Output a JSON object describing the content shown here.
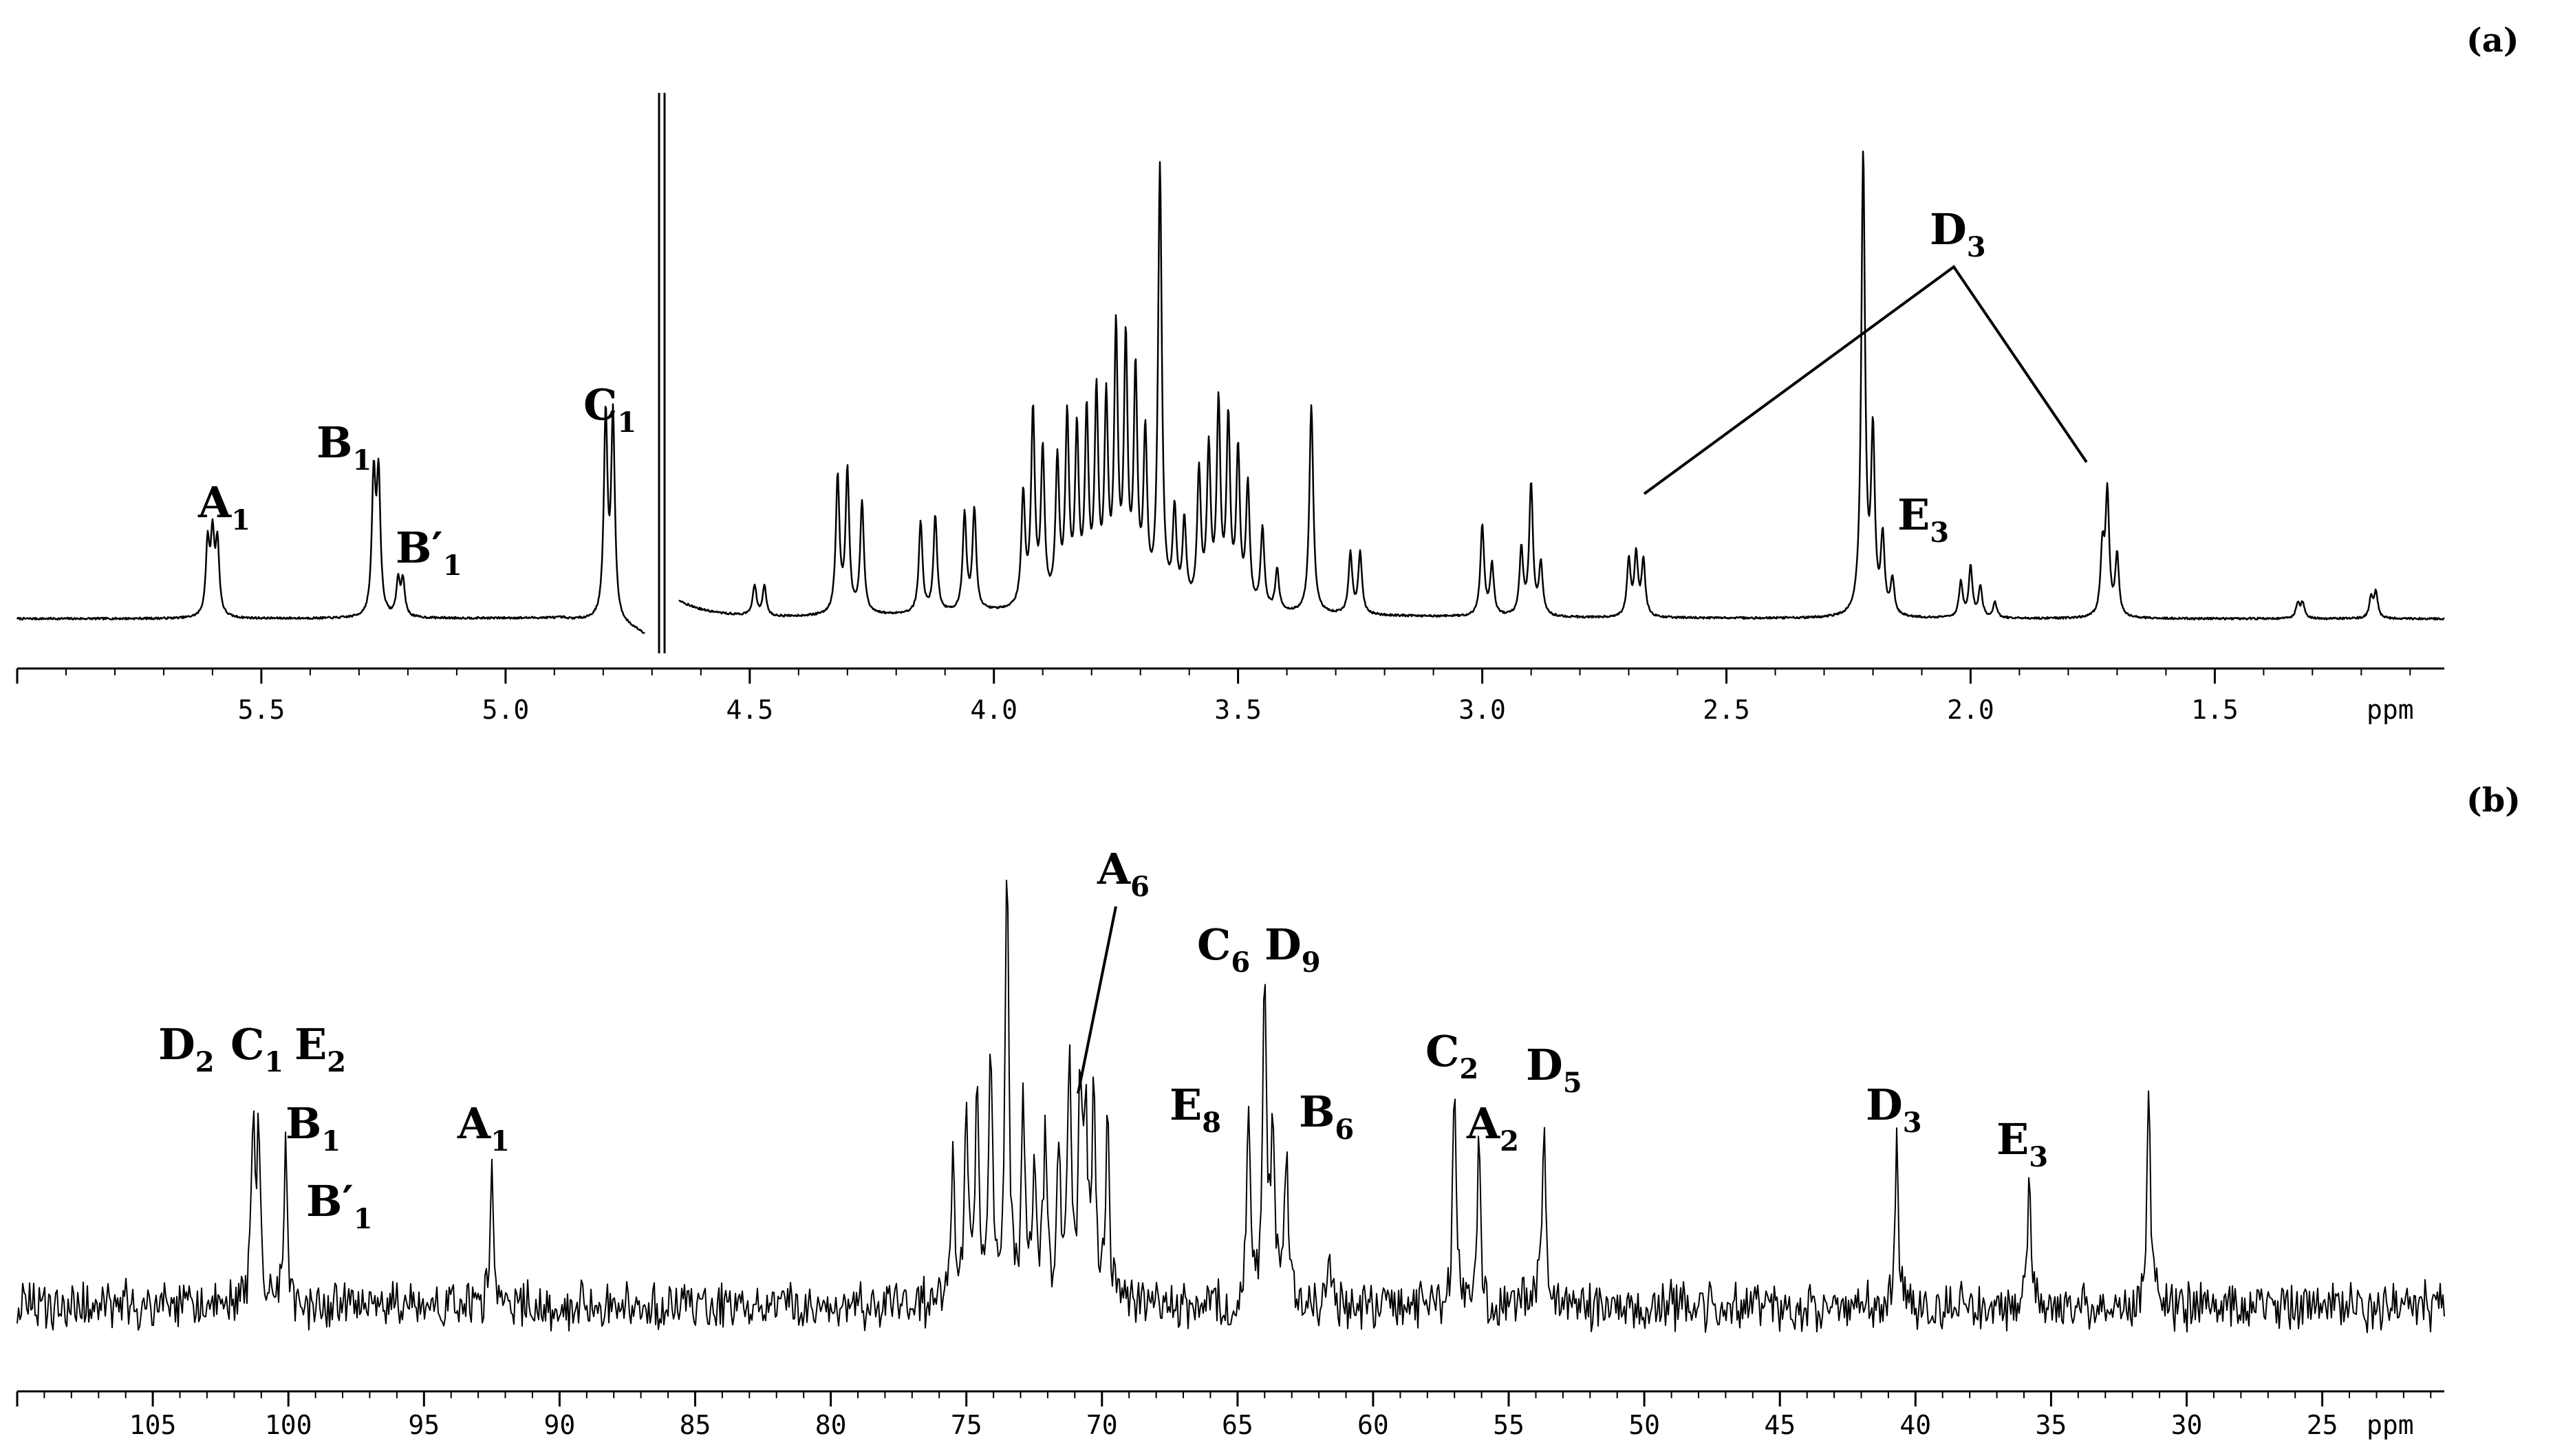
{
  "chart_data": [
    {
      "type": "line",
      "panel_label": "(a)",
      "unit_label": "ppm",
      "xlim": [
        6.0,
        1.03
      ],
      "x_reversed": true,
      "ticks": [
        5.5,
        5.0,
        4.5,
        4.0,
        3.5,
        3.0,
        2.5,
        2.0,
        1.5
      ],
      "tick_labels": [
        "5.5",
        "5.0",
        "4.5",
        "4.0",
        "3.5",
        "3.0",
        "2.5",
        "2.0",
        "1.5"
      ],
      "peaks": [
        {
          "ppm": 5.61,
          "h": 0.14
        },
        {
          "ppm": 5.6,
          "h": 0.15
        },
        {
          "ppm": 5.59,
          "h": 0.14
        },
        {
          "ppm": 5.27,
          "h": 0.27
        },
        {
          "ppm": 5.26,
          "h": 0.27
        },
        {
          "ppm": 5.22,
          "h": 0.07
        },
        {
          "ppm": 5.21,
          "h": 0.07
        },
        {
          "ppm": 4.795,
          "h": 0.4
        },
        {
          "ppm": 4.78,
          "h": 0.4
        },
        {
          "ppm": 4.49,
          "h": 0.06
        },
        {
          "ppm": 4.47,
          "h": 0.06
        },
        {
          "ppm": 4.32,
          "h": 0.27
        },
        {
          "ppm": 4.3,
          "h": 0.28
        },
        {
          "ppm": 4.27,
          "h": 0.22
        },
        {
          "ppm": 4.15,
          "h": 0.18
        },
        {
          "ppm": 4.12,
          "h": 0.19
        },
        {
          "ppm": 4.06,
          "h": 0.19
        },
        {
          "ppm": 4.04,
          "h": 0.2
        },
        {
          "ppm": 3.94,
          "h": 0.22
        },
        {
          "ppm": 3.92,
          "h": 0.38
        },
        {
          "ppm": 3.9,
          "h": 0.3
        },
        {
          "ppm": 3.87,
          "h": 0.28
        },
        {
          "ppm": 3.85,
          "h": 0.36
        },
        {
          "ppm": 3.83,
          "h": 0.33
        },
        {
          "ppm": 3.81,
          "h": 0.36
        },
        {
          "ppm": 3.79,
          "h": 0.4
        },
        {
          "ppm": 3.77,
          "h": 0.38
        },
        {
          "ppm": 3.75,
          "h": 0.52
        },
        {
          "ppm": 3.73,
          "h": 0.5
        },
        {
          "ppm": 3.71,
          "h": 0.44
        },
        {
          "ppm": 3.69,
          "h": 0.32
        },
        {
          "ppm": 3.66,
          "h": 0.93
        },
        {
          "ppm": 3.63,
          "h": 0.18
        },
        {
          "ppm": 3.61,
          "h": 0.16
        },
        {
          "ppm": 3.58,
          "h": 0.26
        },
        {
          "ppm": 3.56,
          "h": 0.3
        },
        {
          "ppm": 3.54,
          "h": 0.39
        },
        {
          "ppm": 3.52,
          "h": 0.36
        },
        {
          "ppm": 3.5,
          "h": 0.3
        },
        {
          "ppm": 3.48,
          "h": 0.24
        },
        {
          "ppm": 3.45,
          "h": 0.16
        },
        {
          "ppm": 3.42,
          "h": 0.08
        },
        {
          "ppm": 3.35,
          "h": 0.48
        },
        {
          "ppm": 3.27,
          "h": 0.12
        },
        {
          "ppm": 3.25,
          "h": 0.12
        },
        {
          "ppm": 3.0,
          "h": 0.18
        },
        {
          "ppm": 2.98,
          "h": 0.1
        },
        {
          "ppm": 2.92,
          "h": 0.13
        },
        {
          "ppm": 2.9,
          "h": 0.26
        },
        {
          "ppm": 2.88,
          "h": 0.1
        },
        {
          "ppm": 2.7,
          "h": 0.11
        },
        {
          "ppm": 2.685,
          "h": 0.12
        },
        {
          "ppm": 2.67,
          "h": 0.11
        },
        {
          "ppm": 2.22,
          "h": 0.97
        },
        {
          "ppm": 2.2,
          "h": 0.35
        },
        {
          "ppm": 2.18,
          "h": 0.15
        },
        {
          "ppm": 2.16,
          "h": 0.07
        },
        {
          "ppm": 2.02,
          "h": 0.07
        },
        {
          "ppm": 2.0,
          "h": 0.1
        },
        {
          "ppm": 1.98,
          "h": 0.06
        },
        {
          "ppm": 1.95,
          "h": 0.03
        },
        {
          "ppm": 1.73,
          "h": 0.13
        },
        {
          "ppm": 1.72,
          "h": 0.24
        },
        {
          "ppm": 1.7,
          "h": 0.12
        },
        {
          "ppm": 1.33,
          "h": 0.03
        },
        {
          "ppm": 1.32,
          "h": 0.03
        },
        {
          "ppm": 1.18,
          "h": 0.04
        },
        {
          "ppm": 1.17,
          "h": 0.05
        }
      ],
      "dips": [
        {
          "ppm": 3.66,
          "h": 0.07
        },
        {
          "ppm": 3.35,
          "h": 0.07
        },
        {
          "ppm": 2.22,
          "h": 0.06
        }
      ],
      "solvent_ppm": 4.68,
      "annotations": [
        {
          "id": "A1",
          "main": "A",
          "sub": "1"
        },
        {
          "id": "B1",
          "main": "B",
          "sub": "1"
        },
        {
          "id": "Bp1",
          "main": "B′",
          "sub": "1"
        },
        {
          "id": "C1",
          "main": "C",
          "sub": "1"
        },
        {
          "id": "D3",
          "main": "D",
          "sub": "3"
        },
        {
          "id": "E3",
          "main": "E",
          "sub": "3"
        }
      ]
    },
    {
      "type": "line",
      "panel_label": "(b)",
      "unit_label": "ppm",
      "xlim": [
        110.0,
        20.5
      ],
      "x_reversed": true,
      "ticks": [
        105,
        100,
        95,
        90,
        85,
        80,
        75,
        70,
        65,
        60,
        55,
        50,
        45,
        40,
        35,
        30,
        25
      ],
      "tick_labels": [
        "105",
        "100",
        "95",
        "90",
        "85",
        "80",
        "75",
        "70",
        "65",
        "60",
        "55",
        "50",
        "45",
        "40",
        "35",
        "30",
        "25"
      ],
      "peaks": [
        {
          "ppm": 101.3,
          "h": 0.35
        },
        {
          "ppm": 101.1,
          "h": 0.3
        },
        {
          "ppm": 100.1,
          "h": 0.28
        },
        {
          "ppm": 92.5,
          "h": 0.23
        },
        {
          "ppm": 75.5,
          "h": 0.28
        },
        {
          "ppm": 75.0,
          "h": 0.36
        },
        {
          "ppm": 74.6,
          "h": 0.4
        },
        {
          "ppm": 74.1,
          "h": 0.46
        },
        {
          "ppm": 73.5,
          "h": 0.79
        },
        {
          "ppm": 72.9,
          "h": 0.36
        },
        {
          "ppm": 72.5,
          "h": 0.26
        },
        {
          "ppm": 72.1,
          "h": 0.3
        },
        {
          "ppm": 71.6,
          "h": 0.3
        },
        {
          "ppm": 71.2,
          "h": 0.48
        },
        {
          "ppm": 70.8,
          "h": 0.38
        },
        {
          "ppm": 70.6,
          "h": 0.34
        },
        {
          "ppm": 70.3,
          "h": 0.36
        },
        {
          "ppm": 69.8,
          "h": 0.34
        },
        {
          "ppm": 64.6,
          "h": 0.33
        },
        {
          "ppm": 64.0,
          "h": 0.63
        },
        {
          "ppm": 63.7,
          "h": 0.32
        },
        {
          "ppm": 63.2,
          "h": 0.28
        },
        {
          "ppm": 61.6,
          "h": 0.08
        },
        {
          "ppm": 57.0,
          "h": 0.37
        },
        {
          "ppm": 56.1,
          "h": 0.3
        },
        {
          "ppm": 53.7,
          "h": 0.36
        },
        {
          "ppm": 40.7,
          "h": 0.29
        },
        {
          "ppm": 35.8,
          "h": 0.23
        },
        {
          "ppm": 31.4,
          "h": 0.39
        }
      ],
      "annotations": [
        {
          "id": "D2",
          "main": "D",
          "sub": "2"
        },
        {
          "id": "C1",
          "main": "C",
          "sub": "1"
        },
        {
          "id": "E2",
          "main": "E",
          "sub": "2"
        },
        {
          "id": "B1",
          "main": "B",
          "sub": "1"
        },
        {
          "id": "Bp1",
          "main": "B′",
          "sub": "1"
        },
        {
          "id": "A1",
          "main": "A",
          "sub": "1"
        },
        {
          "id": "A6",
          "main": "A",
          "sub": "6"
        },
        {
          "id": "C6",
          "main": "C",
          "sub": "6"
        },
        {
          "id": "D9",
          "main": "D",
          "sub": "9"
        },
        {
          "id": "E8",
          "main": "E",
          "sub": "8"
        },
        {
          "id": "B6",
          "main": "B",
          "sub": "6"
        },
        {
          "id": "C2",
          "main": "C",
          "sub": "2"
        },
        {
          "id": "D5",
          "main": "D",
          "sub": "5"
        },
        {
          "id": "A2",
          "main": "A",
          "sub": "2"
        },
        {
          "id": "D3",
          "main": "D",
          "sub": "3"
        },
        {
          "id": "E3",
          "main": "E",
          "sub": "3"
        }
      ]
    }
  ]
}
